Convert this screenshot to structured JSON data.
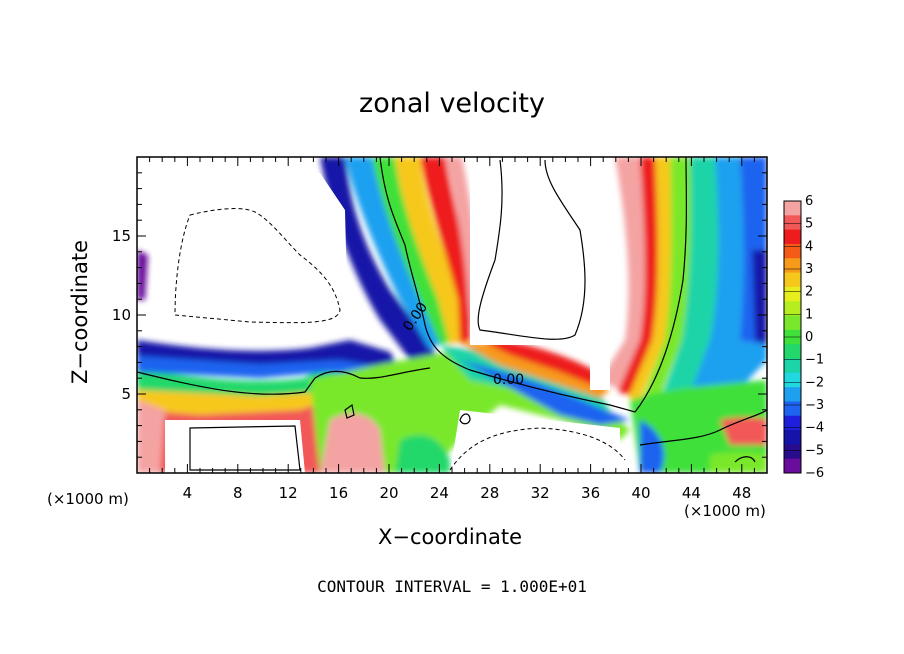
{
  "chart_data": {
    "type": "heatmap",
    "title": "zonal velocity",
    "xlabel": "X−coordinate",
    "ylabel": "Z−coordinate",
    "x_unit_label": "(×1000 m)",
    "z_unit_label": "(×1000 m)",
    "note": "CONTOUR INTERVAL = 1.000E+01",
    "xlim": [
      0,
      50
    ],
    "ylim": [
      0,
      20
    ],
    "x_ticks": [
      "4",
      "8",
      "12",
      "16",
      "20",
      "24",
      "28",
      "32",
      "36",
      "40",
      "44",
      "48"
    ],
    "y_ticks": [
      "5",
      "10",
      "15"
    ],
    "colorbar": {
      "range": [
        -6,
        6
      ],
      "tick_labels": [
        "6",
        "5",
        "4",
        "3",
        "2",
        "1",
        "0",
        "−1",
        "−2",
        "−3",
        "−4",
        "−5",
        "−6"
      ],
      "colors": [
        "#f4a3a3",
        "#f25858",
        "#ee1c1c",
        "#f55a18",
        "#f79a1a",
        "#f7c81c",
        "#e8ed1e",
        "#b5ee20",
        "#7ae82a",
        "#3fe03a",
        "#22d86a",
        "#1bd4a8",
        "#20d8e0",
        "#1ea0f0",
        "#1e64f0",
        "#1e1edc",
        "#1414a8",
        "#280c8c",
        "#6a0c9c"
      ]
    },
    "contour_labels": [
      "0.00",
      "0.00"
    ]
  }
}
